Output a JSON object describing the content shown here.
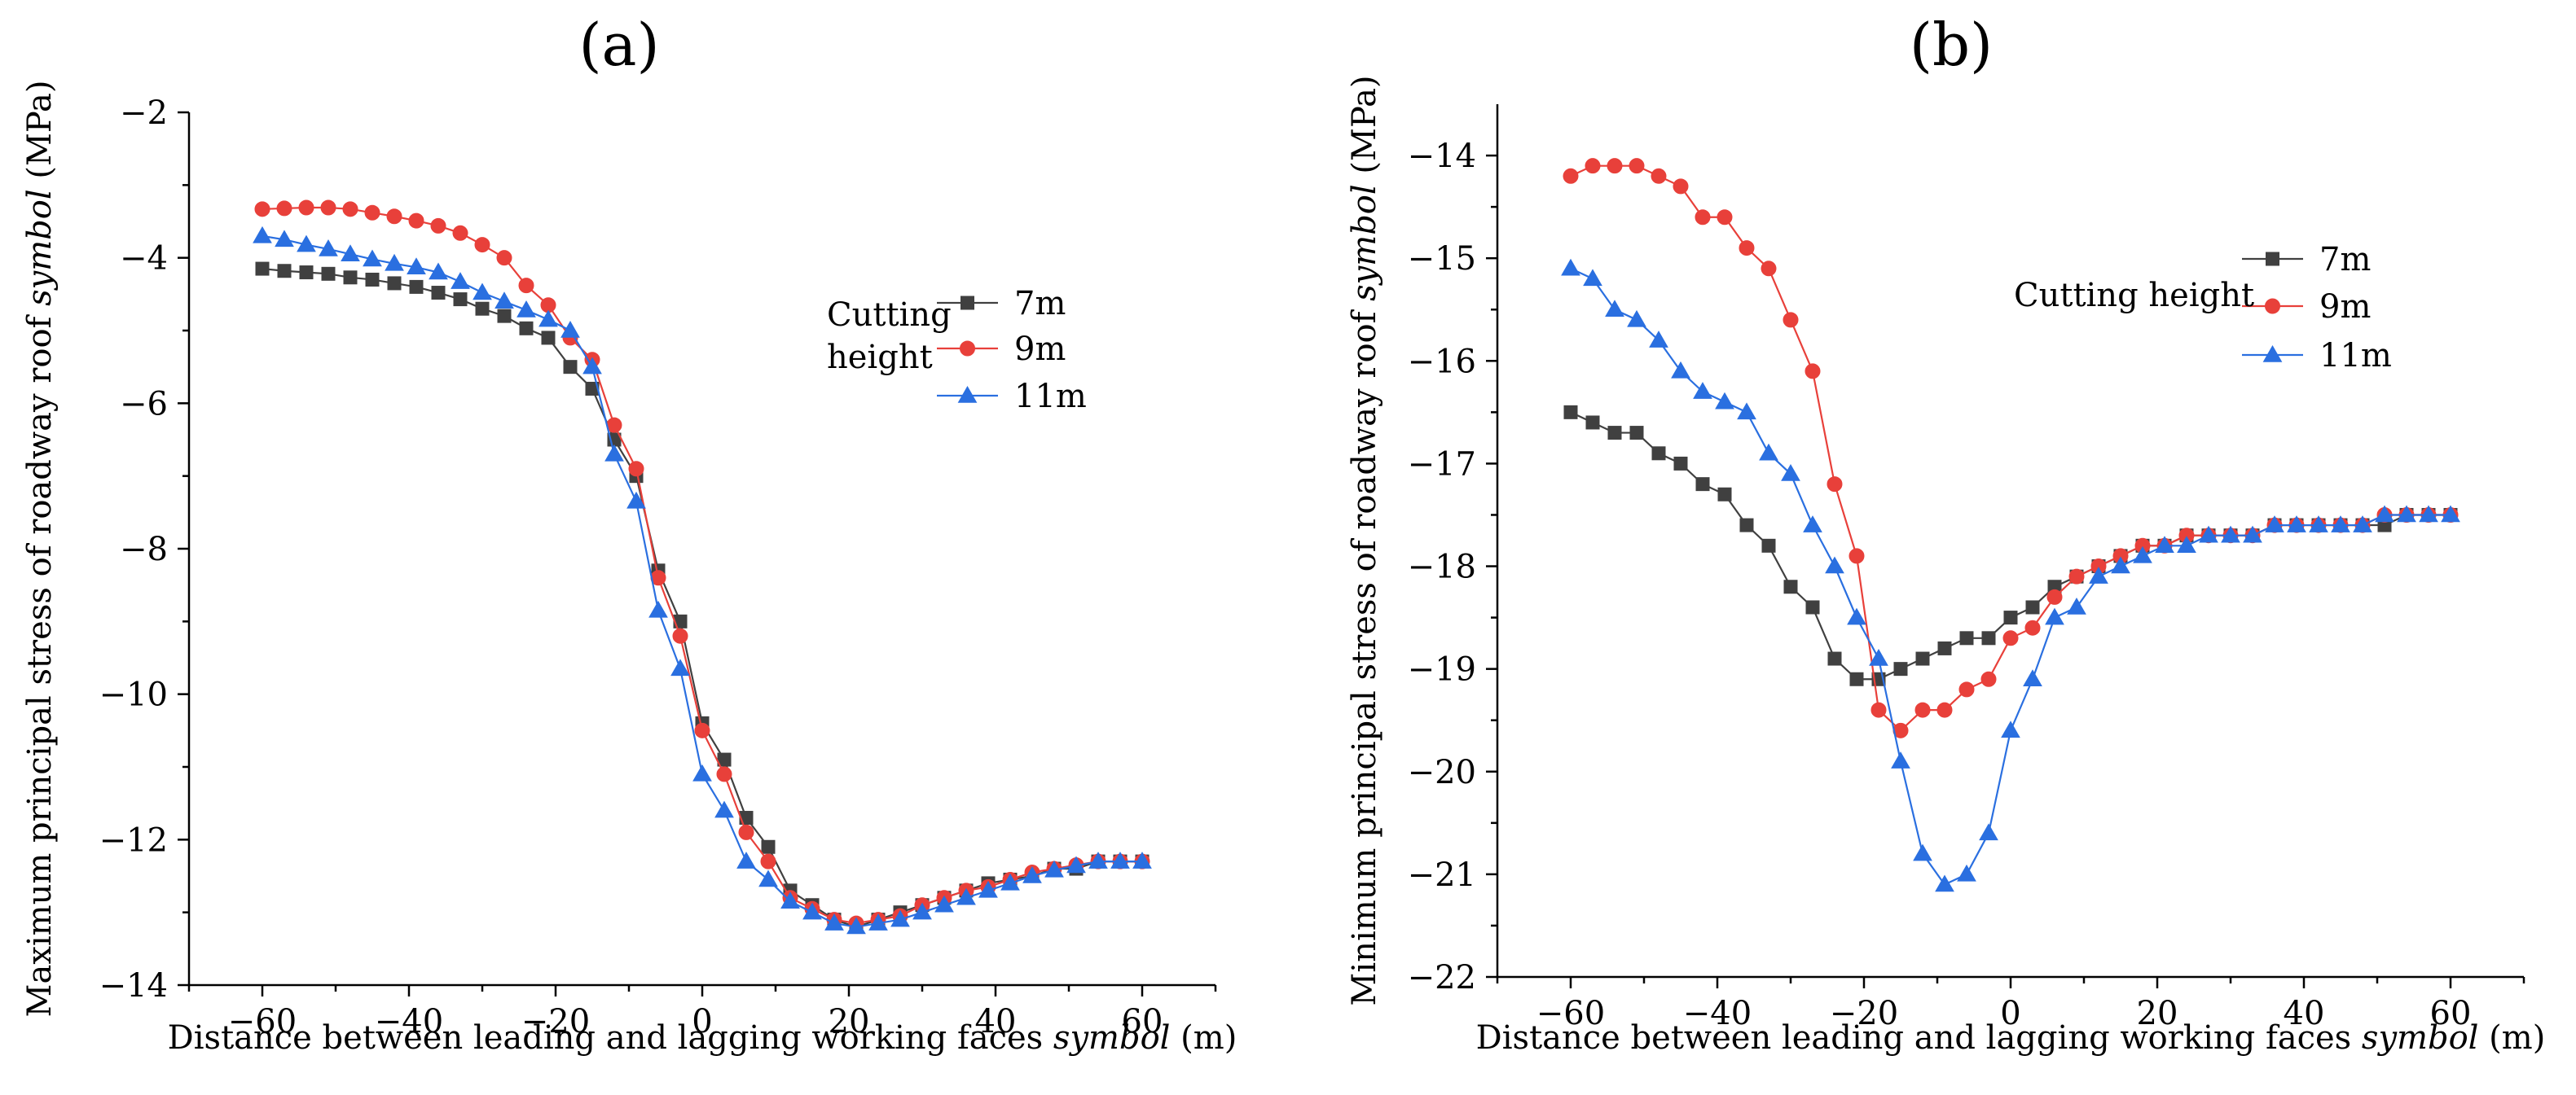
{
  "chart_data": [
    {
      "type": "line",
      "panel_label": "(a)",
      "ylabel_prefix": "Maximum principal stress of roadway roof ",
      "ylabel_symbol": "symbol",
      "ylabel_suffix": " (MPa)",
      "xlabel_prefix": "Distance between leading and lagging working faces ",
      "xlabel_symbol": "symbol",
      "xlabel_suffix": " (m)",
      "xlim": [
        -70,
        70
      ],
      "ylim": [
        -14,
        -2
      ],
      "xticks": [
        -60,
        -40,
        -20,
        0,
        20,
        40,
        60
      ],
      "yticks": [
        -14,
        -12,
        -10,
        -8,
        -6,
        -4,
        -2
      ],
      "legend_title": "Cutting height",
      "legend_title_lines": [
        "Cutting",
        "height"
      ],
      "x": [
        -60,
        -57,
        -54,
        -51,
        -48,
        -45,
        -42,
        -39,
        -36,
        -33,
        -30,
        -27,
        -24,
        -21,
        -18,
        -15,
        -12,
        -9,
        -6,
        -3,
        0,
        3,
        6,
        9,
        12,
        15,
        18,
        21,
        24,
        27,
        30,
        33,
        36,
        39,
        42,
        45,
        48,
        51,
        54,
        57,
        60
      ],
      "series": [
        {
          "name": "7m",
          "color": "#404040",
          "marker": "square",
          "values": [
            -4.15,
            -4.18,
            -4.2,
            -4.22,
            -4.27,
            -4.3,
            -4.35,
            -4.4,
            -4.48,
            -4.57,
            -4.7,
            -4.8,
            -4.97,
            -5.1,
            -5.5,
            -5.8,
            -6.5,
            -7.0,
            -8.3,
            -9.0,
            -10.4,
            -10.9,
            -11.7,
            -12.1,
            -12.7,
            -12.9,
            -13.1,
            -13.2,
            -13.1,
            -13.0,
            -12.9,
            -12.8,
            -12.7,
            -12.6,
            -12.55,
            -12.5,
            -12.4,
            -12.4,
            -12.3,
            -12.3,
            -12.3
          ]
        },
        {
          "name": "9m",
          "color": "#e8403a",
          "marker": "circle",
          "values": [
            -3.33,
            -3.32,
            -3.31,
            -3.31,
            -3.33,
            -3.38,
            -3.43,
            -3.49,
            -3.56,
            -3.66,
            -3.82,
            -4.0,
            -4.38,
            -4.65,
            -5.1,
            -5.4,
            -6.3,
            -6.9,
            -8.4,
            -9.2,
            -10.5,
            -11.1,
            -11.9,
            -12.3,
            -12.8,
            -12.95,
            -13.1,
            -13.15,
            -13.1,
            -13.05,
            -12.9,
            -12.8,
            -12.7,
            -12.65,
            -12.55,
            -12.45,
            -12.4,
            -12.35,
            -12.3,
            -12.3,
            -12.3
          ]
        },
        {
          "name": "11m",
          "color": "#2a6fe0",
          "marker": "triangle",
          "values": [
            -3.7,
            -3.75,
            -3.82,
            -3.88,
            -3.95,
            -4.02,
            -4.08,
            -4.13,
            -4.2,
            -4.33,
            -4.48,
            -4.6,
            -4.72,
            -4.85,
            -5.0,
            -5.5,
            -6.7,
            -7.35,
            -8.85,
            -9.65,
            -11.1,
            -11.6,
            -12.3,
            -12.55,
            -12.85,
            -13.0,
            -13.15,
            -13.2,
            -13.15,
            -13.1,
            -13.0,
            -12.9,
            -12.8,
            -12.7,
            -12.6,
            -12.5,
            -12.42,
            -12.36,
            -12.3,
            -12.3,
            -12.3
          ]
        }
      ]
    },
    {
      "type": "line",
      "panel_label": "(b)",
      "ylabel_prefix": "Minimum principal stress of roadway roof ",
      "ylabel_symbol": "symbol",
      "ylabel_suffix": " (MPa)",
      "xlabel_prefix": "Distance between leading and lagging working faces ",
      "xlabel_symbol": "symbol",
      "xlabel_suffix": " (m)",
      "xlim": [
        -70,
        70
      ],
      "ylim": [
        -22,
        -13.5
      ],
      "xticks": [
        -60,
        -40,
        -20,
        0,
        20,
        40,
        60
      ],
      "yticks": [
        -22,
        -21,
        -20,
        -19,
        -18,
        -17,
        -16,
        -15,
        -14
      ],
      "legend_title": "Cutting height",
      "legend_title_lines": [
        "Cutting height"
      ],
      "x": [
        -60,
        -57,
        -54,
        -51,
        -48,
        -45,
        -42,
        -39,
        -36,
        -33,
        -30,
        -27,
        -24,
        -21,
        -18,
        -15,
        -12,
        -9,
        -6,
        -3,
        0,
        3,
        6,
        9,
        12,
        15,
        18,
        21,
        24,
        27,
        30,
        33,
        36,
        39,
        42,
        45,
        48,
        51,
        54,
        57,
        60
      ],
      "series": [
        {
          "name": "7m",
          "color": "#404040",
          "marker": "square",
          "values": [
            -16.5,
            -16.6,
            -16.7,
            -16.7,
            -16.9,
            -17.0,
            -17.2,
            -17.3,
            -17.6,
            -17.8,
            -18.2,
            -18.4,
            -18.9,
            -19.1,
            -19.1,
            -19.0,
            -18.9,
            -18.8,
            -18.7,
            -18.7,
            -18.5,
            -18.4,
            -18.2,
            -18.1,
            -18.0,
            -17.9,
            -17.8,
            -17.8,
            -17.7,
            -17.7,
            -17.7,
            -17.7,
            -17.6,
            -17.6,
            -17.6,
            -17.6,
            -17.6,
            -17.6,
            -17.5,
            -17.5,
            -17.5
          ]
        },
        {
          "name": "9m",
          "color": "#e8403a",
          "marker": "circle",
          "values": [
            -14.2,
            -14.1,
            -14.1,
            -14.1,
            -14.2,
            -14.3,
            -14.6,
            -14.6,
            -14.9,
            -15.1,
            -15.6,
            -16.1,
            -17.2,
            -17.9,
            -19.4,
            -19.6,
            -19.4,
            -19.4,
            -19.2,
            -19.1,
            -18.7,
            -18.6,
            -18.3,
            -18.1,
            -18.0,
            -17.9,
            -17.8,
            -17.8,
            -17.7,
            -17.7,
            -17.7,
            -17.7,
            -17.6,
            -17.6,
            -17.6,
            -17.6,
            -17.6,
            -17.5,
            -17.5,
            -17.5,
            -17.5
          ]
        },
        {
          "name": "11m",
          "color": "#2a6fe0",
          "marker": "triangle",
          "values": [
            -15.1,
            -15.2,
            -15.5,
            -15.6,
            -15.8,
            -16.1,
            -16.3,
            -16.4,
            -16.5,
            -16.9,
            -17.1,
            -17.6,
            -18.0,
            -18.5,
            -18.9,
            -19.9,
            -20.8,
            -21.1,
            -21.0,
            -20.6,
            -19.6,
            -19.1,
            -18.5,
            -18.4,
            -18.1,
            -18.0,
            -17.9,
            -17.8,
            -17.8,
            -17.7,
            -17.7,
            -17.7,
            -17.6,
            -17.6,
            -17.6,
            -17.6,
            -17.6,
            -17.5,
            -17.5,
            -17.5,
            -17.5
          ]
        }
      ]
    }
  ]
}
